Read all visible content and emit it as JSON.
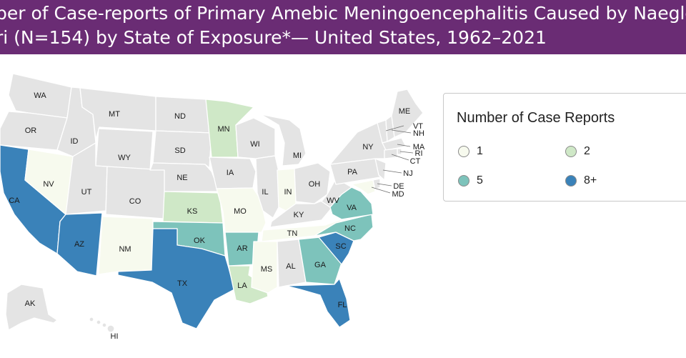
{
  "header": {
    "line1": "ber of Case-reports of Primary Amebic Meningoencephalitis Caused by Naegleria",
    "line2": "ri (N=154) by State of Exposure*— United States, 1962–2021"
  },
  "legend": {
    "title": "Number of Case Reports",
    "items": [
      {
        "label": "1",
        "color": "#f7faee"
      },
      {
        "label": "2",
        "color": "#cfe8c7"
      },
      {
        "label": "5",
        "color": "#7dc3bb"
      },
      {
        "label": "8+",
        "color": "#3a82b9"
      }
    ]
  },
  "map": {
    "colors": {
      "none": "#e4e4e4",
      "c1": "#f7faee",
      "c2": "#cfe8c7",
      "c5": "#7dc3bb",
      "c8": "#3a82b9"
    },
    "states": [
      {
        "abbr": "WA",
        "category": "none"
      },
      {
        "abbr": "OR",
        "category": "none"
      },
      {
        "abbr": "CA",
        "category": "8+"
      },
      {
        "abbr": "NV",
        "category": "1"
      },
      {
        "abbr": "ID",
        "category": "none"
      },
      {
        "abbr": "MT",
        "category": "none"
      },
      {
        "abbr": "WY",
        "category": "none"
      },
      {
        "abbr": "UT",
        "category": "none"
      },
      {
        "abbr": "AZ",
        "category": "8+"
      },
      {
        "abbr": "CO",
        "category": "none"
      },
      {
        "abbr": "NM",
        "category": "1"
      },
      {
        "abbr": "ND",
        "category": "none"
      },
      {
        "abbr": "SD",
        "category": "none"
      },
      {
        "abbr": "NE",
        "category": "none"
      },
      {
        "abbr": "KS",
        "category": "2"
      },
      {
        "abbr": "OK",
        "category": "5"
      },
      {
        "abbr": "TX",
        "category": "8+"
      },
      {
        "abbr": "MN",
        "category": "2"
      },
      {
        "abbr": "IA",
        "category": "none"
      },
      {
        "abbr": "MO",
        "category": "1"
      },
      {
        "abbr": "AR",
        "category": "5"
      },
      {
        "abbr": "LA",
        "category": "2"
      },
      {
        "abbr": "WI",
        "category": "none"
      },
      {
        "abbr": "IL",
        "category": "none"
      },
      {
        "abbr": "MI",
        "category": "none"
      },
      {
        "abbr": "IN",
        "category": "1"
      },
      {
        "abbr": "OH",
        "category": "none"
      },
      {
        "abbr": "KY",
        "category": "none"
      },
      {
        "abbr": "TN",
        "category": "1"
      },
      {
        "abbr": "MS",
        "category": "1"
      },
      {
        "abbr": "AL",
        "category": "none"
      },
      {
        "abbr": "GA",
        "category": "5"
      },
      {
        "abbr": "FL",
        "category": "8+"
      },
      {
        "abbr": "SC",
        "category": "8+"
      },
      {
        "abbr": "NC",
        "category": "5"
      },
      {
        "abbr": "VA",
        "category": "5"
      },
      {
        "abbr": "WV",
        "category": "none"
      },
      {
        "abbr": "PA",
        "category": "none"
      },
      {
        "abbr": "NY",
        "category": "none"
      },
      {
        "abbr": "ME",
        "category": "none"
      },
      {
        "abbr": "VT",
        "category": "none"
      },
      {
        "abbr": "NH",
        "category": "none"
      },
      {
        "abbr": "MA",
        "category": "none"
      },
      {
        "abbr": "RI",
        "category": "none"
      },
      {
        "abbr": "CT",
        "category": "none"
      },
      {
        "abbr": "NJ",
        "category": "none"
      },
      {
        "abbr": "DE",
        "category": "none"
      },
      {
        "abbr": "MD",
        "category": "1"
      },
      {
        "abbr": "AK",
        "category": "none"
      },
      {
        "abbr": "HI",
        "category": "none"
      }
    ]
  }
}
